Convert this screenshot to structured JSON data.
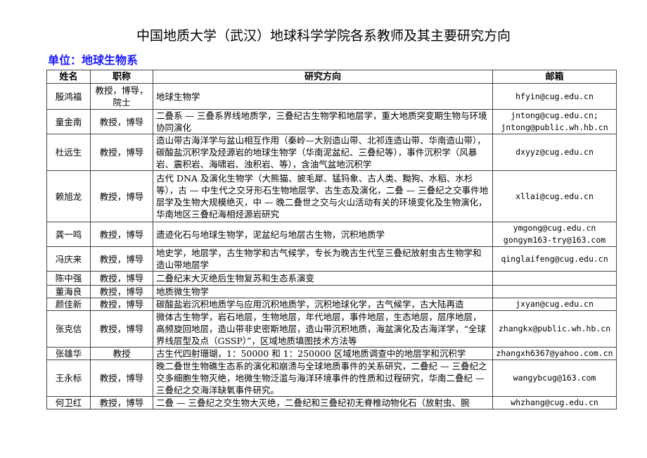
{
  "title": "中国地质大学（武汉）地球科学学院各系教师及其主要研究方向",
  "unit": "单位：地球生物系",
  "table": {
    "headers": [
      "姓名",
      "职称",
      "研究方向",
      "邮箱"
    ],
    "rows": [
      {
        "name": "殷鸿福",
        "title": "教授，博导，院士",
        "research": "地球生物学",
        "email": "hfyin@cug.edu.cn"
      },
      {
        "name": "童金南",
        "title": "教授，博导",
        "research": "二叠系 — 三叠系界线地质学，三叠纪古生物学和地层学，重大地质突变期生物与环境协同演化",
        "email": "jntong@cug.edu.cn; jntong@public.wh.hb.cn"
      },
      {
        "name": "杜远生",
        "title": "教授，博导",
        "research": "造山带古海洋学与盆山相互作用（秦岭—大别造山带、北祁连造山带、华南造山带），碳酸盐沉积学及烃源岩的地球生物学（华南泥盆纪、三叠纪等），事件沉积学（风暴岩、震积岩、海啸岩、浊积岩、等），含油气盆地沉积学",
        "email": "dxyyz@cug.edu.cn"
      },
      {
        "name": "赖旭龙",
        "title": "教授，博导",
        "research": "古代 DNA 及演化生物学（大熊猫、披毛犀、猛犸象、古人类、黝狗、水稻、水杉等），古 — 中生代之交牙形石生物地层学、古生态及演化，二叠 — 三叠纪之交事件地层学及生物大规模绝灭，中 — 晚二叠世之交与火山活动有关的环境变化及生物演化，华南地区三叠纪海相烃源岩研究",
        "email": "xllai@cug.edu.cn"
      },
      {
        "name": "龚一鸣",
        "title": "教授，博导",
        "research": "遗迹化石与地球生物学，泥盆纪与地层古生物，沉积地质学",
        "email": "ymgong@cug.edu.cn gongym163-try@163.com"
      },
      {
        "name": "冯庆来",
        "title": "教授，博导",
        "research": "地史学，地层学，古生物学和古气候学，专长为晚古生代至三叠纪放射虫古生物学和造山带地层学",
        "email": "qinglaifeng@cug.edu.cn"
      },
      {
        "name": "陈中强",
        "title": "教授，博导",
        "research": "二叠纪末大灭绝后生物复苏和生态系演变",
        "email": ""
      },
      {
        "name": "董海良",
        "title": "教授，博导",
        "research": "地质微生物学",
        "email": ""
      },
      {
        "name": "颜佳新",
        "title": "教授，博导",
        "research": "碳酸盐岩沉积地质学与应用沉积地质学，沉积地球化学，古气候学，古大陆再造",
        "email": "jxyan@cug.edu.cn"
      },
      {
        "name": "张克信",
        "title": "教授，博导",
        "research": "微体古生物学，岩石地层，生物地层，年代地层，事件地层，生态地层，层序地层，高频旋回地层，造山带非史密斯地层，造山带沉积地质，海盆演化及古海洋学，“全球界线层型及点（GSSP）”，区域地质填图技术方法等",
        "email": "zhangkx@public.wh.hb.cn"
      },
      {
        "name": "张雄华",
        "title": "教授",
        "research": "古生代四射珊瑚，1：50000 和 1：250000 区域地质调查中的地层学和沉积学",
        "email": "zhangxh6367@yahoo.com.cn"
      },
      {
        "name": "王永标",
        "title": "教授，博导",
        "research": "晚二叠世生物礁生态系的演化和崩溃与全球地质事件的关系研究，二叠纪 — 三叠纪之交多细胞生物灭绝，地微生物泛滥与海洋环境事件的性质和过程研究，华南二叠纪 — 三叠纪之交海洋缺氧事件研究。",
        "email": "wangybcug@163.com"
      },
      {
        "name": "何卫红",
        "title": "教授，博导",
        "research": "二叠 — 三叠纪之交生物大灭绝，二叠纪和三叠纪初无脊椎动物化石（放射虫、腕",
        "email": "whzhang@cug.edu.cn"
      }
    ]
  }
}
